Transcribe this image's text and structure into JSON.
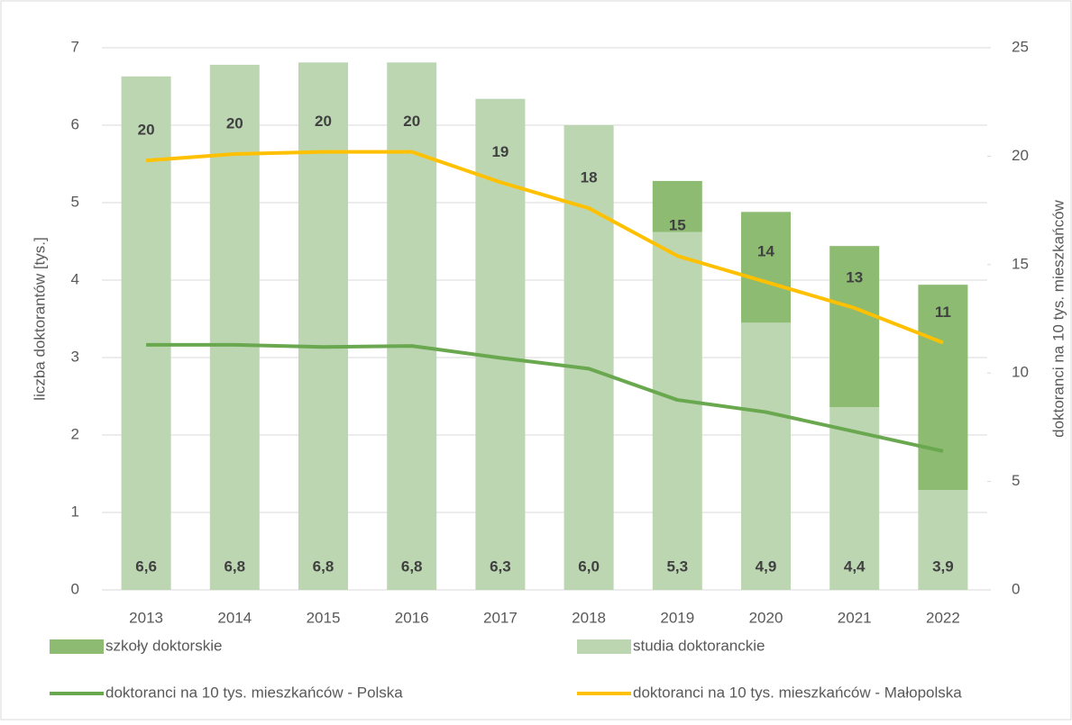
{
  "chart_data": {
    "type": "bar",
    "categories": [
      "2013",
      "2014",
      "2015",
      "2016",
      "2017",
      "2018",
      "2019",
      "2020",
      "2021",
      "2022"
    ],
    "y_label": "liczba doktorantów [tys.]",
    "y2_label": "doktoranci na 10 tys. mieszkańców",
    "ylim": [
      0,
      7
    ],
    "yticks": [
      0,
      1,
      2,
      3,
      4,
      5,
      6,
      7
    ],
    "y2lim": [
      0,
      25
    ],
    "y2ticks": [
      0,
      5,
      10,
      15,
      20,
      25
    ],
    "grid": true,
    "legend": "bottom",
    "series": [
      {
        "name": "szkoły doktorskie",
        "type": "bar",
        "color": "#8dbb72",
        "values": [
          0,
          0,
          0,
          0,
          0,
          0,
          0.66,
          1.43,
          2.08,
          2.65
        ]
      },
      {
        "name": "studia doktoranckie",
        "type": "bar",
        "color": "#bcd6b2",
        "values": [
          6.63,
          6.78,
          6.81,
          6.81,
          6.34,
          6.0,
          4.62,
          3.45,
          2.36,
          1.29
        ]
      },
      {
        "name": "doktoranci na 10 tys. mieszkańców - Polska",
        "type": "line",
        "axis": "y2",
        "color": "#6aa84f",
        "values": [
          11.3,
          11.3,
          11.2,
          11.25,
          10.7,
          10.2,
          8.76,
          8.2,
          7.3,
          6.4
        ]
      },
      {
        "name": "doktoranci na 10 tys. mieszkańców - Małopolska",
        "type": "line",
        "axis": "y2",
        "color": "#ffc000",
        "values": [
          19.8,
          20.1,
          20.2,
          20.2,
          18.8,
          17.6,
          15.4,
          14.2,
          13.0,
          11.4
        ],
        "value_labels": [
          "20",
          "20",
          "20",
          "20",
          "19",
          "18",
          "15",
          "14",
          "13",
          "11"
        ]
      }
    ],
    "totals": {
      "values": [
        6.63,
        6.78,
        6.81,
        6.81,
        6.34,
        6.0,
        5.28,
        4.88,
        4.44,
        3.94
      ],
      "value_labels": [
        "6,6",
        "6,8",
        "6,8",
        "6,8",
        "6,3",
        "6,0",
        "5,3",
        "4,9",
        "4,4",
        "3,9"
      ]
    }
  }
}
